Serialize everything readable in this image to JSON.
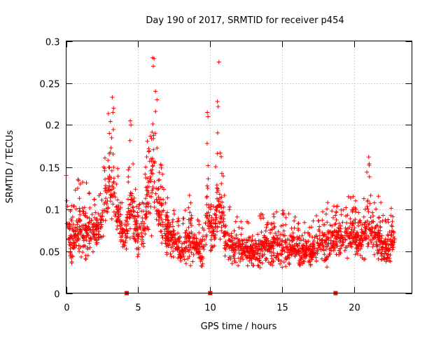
{
  "chart_data": {
    "type": "scatter",
    "title": "Day 190 of 2017, SRMTID for receiver p454",
    "xlabel": "GPS time / hours",
    "ylabel": "SRMTID / TECUs",
    "xlim": [
      0,
      24
    ],
    "ylim": [
      0,
      0.3
    ],
    "xticks": [
      0,
      5,
      10,
      15,
      20
    ],
    "xtick_labels": [
      "0",
      "5",
      "10",
      "15",
      "20"
    ],
    "yticks": [
      0,
      0.05,
      0.1,
      0.15,
      0.2,
      0.25,
      0.3
    ],
    "ytick_labels": [
      "0",
      "0.05",
      "0.1",
      "0.15",
      "0.2",
      "0.25",
      "0.3"
    ],
    "grid": true,
    "marker": "+",
    "color": "#ff0000",
    "axis_markers_x": [
      4.2,
      10.0,
      18.7
    ],
    "envelope": [
      {
        "x": 0.0,
        "lo": 0.04,
        "hi": 0.14
      },
      {
        "x": 0.5,
        "lo": 0.03,
        "hi": 0.12
      },
      {
        "x": 1.0,
        "lo": 0.04,
        "hi": 0.15
      },
      {
        "x": 1.5,
        "lo": 0.04,
        "hi": 0.13
      },
      {
        "x": 2.0,
        "lo": 0.05,
        "hi": 0.12
      },
      {
        "x": 2.5,
        "lo": 0.06,
        "hi": 0.13
      },
      {
        "x": 3.0,
        "lo": 0.08,
        "hi": 0.23
      },
      {
        "x": 3.5,
        "lo": 0.07,
        "hi": 0.17
      },
      {
        "x": 4.0,
        "lo": 0.04,
        "hi": 0.1
      },
      {
        "x": 4.5,
        "lo": 0.06,
        "hi": 0.2
      },
      {
        "x": 5.0,
        "lo": 0.04,
        "hi": 0.11
      },
      {
        "x": 5.5,
        "lo": 0.05,
        "hi": 0.15
      },
      {
        "x": 6.0,
        "lo": 0.07,
        "hi": 0.28
      },
      {
        "x": 6.5,
        "lo": 0.05,
        "hi": 0.17
      },
      {
        "x": 7.0,
        "lo": 0.04,
        "hi": 0.13
      },
      {
        "x": 7.5,
        "lo": 0.04,
        "hi": 0.1
      },
      {
        "x": 8.0,
        "lo": 0.03,
        "hi": 0.08
      },
      {
        "x": 8.5,
        "lo": 0.03,
        "hi": 0.13
      },
      {
        "x": 9.0,
        "lo": 0.04,
        "hi": 0.09
      },
      {
        "x": 9.5,
        "lo": 0.02,
        "hi": 0.08
      },
      {
        "x": 9.8,
        "lo": 0.06,
        "hi": 0.21
      },
      {
        "x": 10.2,
        "lo": 0.04,
        "hi": 0.11
      },
      {
        "x": 10.6,
        "lo": 0.05,
        "hi": 0.22
      },
      {
        "x": 11.0,
        "lo": 0.04,
        "hi": 0.12
      },
      {
        "x": 11.5,
        "lo": 0.03,
        "hi": 0.1
      },
      {
        "x": 12.0,
        "lo": 0.03,
        "hi": 0.09
      },
      {
        "x": 13.0,
        "lo": 0.03,
        "hi": 0.09
      },
      {
        "x": 14.0,
        "lo": 0.03,
        "hi": 0.1
      },
      {
        "x": 15.0,
        "lo": 0.03,
        "hi": 0.1
      },
      {
        "x": 16.0,
        "lo": 0.03,
        "hi": 0.09
      },
      {
        "x": 17.0,
        "lo": 0.03,
        "hi": 0.08
      },
      {
        "x": 18.0,
        "lo": 0.03,
        "hi": 0.12
      },
      {
        "x": 19.0,
        "lo": 0.04,
        "hi": 0.11
      },
      {
        "x": 20.0,
        "lo": 0.04,
        "hi": 0.12
      },
      {
        "x": 20.5,
        "lo": 0.04,
        "hi": 0.11
      },
      {
        "x": 21.0,
        "lo": 0.04,
        "hi": 0.16
      },
      {
        "x": 21.5,
        "lo": 0.04,
        "hi": 0.13
      },
      {
        "x": 22.0,
        "lo": 0.03,
        "hi": 0.1
      },
      {
        "x": 22.5,
        "lo": 0.03,
        "hi": 0.11
      },
      {
        "x": 22.8,
        "lo": 0.05,
        "hi": 0.1
      }
    ],
    "outliers": [
      {
        "x": 6.0,
        "y": 0.28
      },
      {
        "x": 6.1,
        "y": 0.279
      },
      {
        "x": 6.05,
        "y": 0.27
      },
      {
        "x": 6.2,
        "y": 0.24
      },
      {
        "x": 6.3,
        "y": 0.23
      },
      {
        "x": 3.2,
        "y": 0.233
      },
      {
        "x": 3.3,
        "y": 0.22
      },
      {
        "x": 3.25,
        "y": 0.215
      },
      {
        "x": 10.6,
        "y": 0.275
      },
      {
        "x": 10.5,
        "y": 0.228
      },
      {
        "x": 10.55,
        "y": 0.222
      },
      {
        "x": 9.8,
        "y": 0.215
      },
      {
        "x": 9.85,
        "y": 0.21
      },
      {
        "x": 4.45,
        "y": 0.205
      },
      {
        "x": 4.5,
        "y": 0.2
      },
      {
        "x": 21.0,
        "y": 0.162
      },
      {
        "x": 3.0,
        "y": 0.19
      },
      {
        "x": 0.0,
        "y": 0.14
      }
    ],
    "seed": 190
  }
}
